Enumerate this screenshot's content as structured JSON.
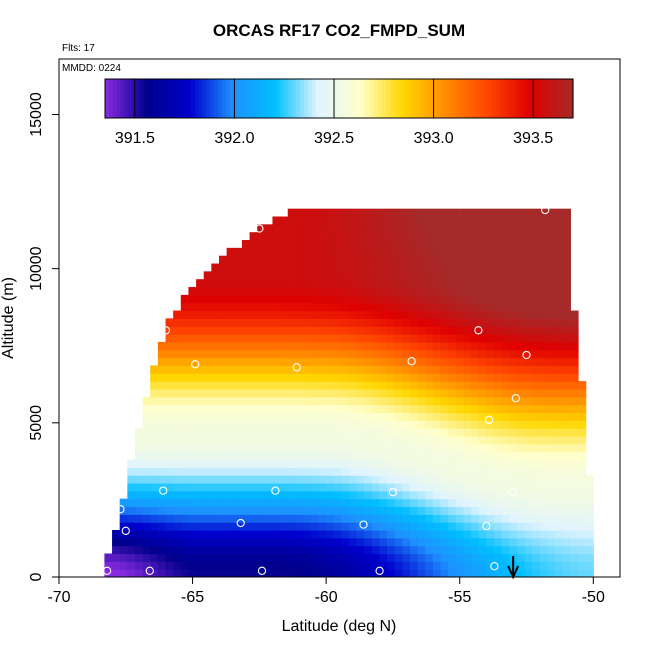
{
  "chart_data": {
    "type": "heatmap",
    "title": "ORCAS RF17 CO2_FMPD_SUM",
    "annotations": {
      "flights": "Flts: 17",
      "date": "MMDD: 0224"
    },
    "xlabel": "Latitude (deg N)",
    "ylabel": "Altitude (m)",
    "xlim": [
      -70,
      -49
    ],
    "ylim": [
      0,
      16800
    ],
    "x_ticks": [
      -70,
      -65,
      -60,
      -55,
      -50
    ],
    "y_ticks": [
      0,
      5000,
      10000,
      15000
    ],
    "colorbar": {
      "range": [
        391.35,
        393.7
      ],
      "ticks": [
        391.5,
        392.0,
        392.5,
        393.0,
        393.5
      ],
      "tick_labels": [
        "391.5",
        "392.0",
        "392.5",
        "393.0",
        "393.5"
      ],
      "colors": [
        "#8a2be2",
        "#00008b",
        "#0000cd",
        "#1e90ff",
        "#00bfff",
        "#e0f4ff",
        "#ffffcc",
        "#ffd700",
        "#ff8c00",
        "#ff4500",
        "#e00000",
        "#a52a2a"
      ]
    },
    "field_extent": {
      "lat_min": -68.3,
      "lat_max": -50.0,
      "top_boundary": [
        {
          "lat": -68.2,
          "alt": 500
        },
        {
          "lat": -67.6,
          "alt": 2500
        },
        {
          "lat": -67.0,
          "alt": 5000
        },
        {
          "lat": -66.0,
          "alt": 8200
        },
        {
          "lat": -65.0,
          "alt": 9400
        },
        {
          "lat": -64.0,
          "alt": 10300
        },
        {
          "lat": -63.0,
          "alt": 11000
        },
        {
          "lat": -62.0,
          "alt": 11600
        },
        {
          "lat": -61.0,
          "alt": 12000
        },
        {
          "lat": -60.5,
          "alt": 12100
        },
        {
          "lat": -51.0,
          "alt": 12000
        },
        {
          "lat": -51.0,
          "alt": 10000
        },
        {
          "lat": -50.6,
          "alt": 8000
        },
        {
          "lat": -50.2,
          "alt": 4000
        },
        {
          "lat": -50.0,
          "alt": 2000
        }
      ]
    },
    "samples": [
      {
        "lat": -68.2,
        "alt": 200
      },
      {
        "lat": -66.6,
        "alt": 200
      },
      {
        "lat": -62.4,
        "alt": 200
      },
      {
        "lat": -58.0,
        "alt": 200
      },
      {
        "lat": -53.7,
        "alt": 350
      },
      {
        "lat": -67.5,
        "alt": 1500
      },
      {
        "lat": -67.7,
        "alt": 2200
      },
      {
        "lat": -63.2,
        "alt": 1750
      },
      {
        "lat": -58.6,
        "alt": 1700
      },
      {
        "lat": -54.0,
        "alt": 1650
      },
      {
        "lat": -66.1,
        "alt": 2800
      },
      {
        "lat": -61.9,
        "alt": 2800
      },
      {
        "lat": -57.5,
        "alt": 2750
      },
      {
        "lat": -53.0,
        "alt": 2750
      },
      {
        "lat": -53.9,
        "alt": 5100
      },
      {
        "lat": -52.9,
        "alt": 5800
      },
      {
        "lat": -67.1,
        "alt": 6700
      },
      {
        "lat": -64.9,
        "alt": 6900
      },
      {
        "lat": -61.1,
        "alt": 6800
      },
      {
        "lat": -56.8,
        "alt": 7000
      },
      {
        "lat": -52.5,
        "alt": 7200
      },
      {
        "lat": -54.3,
        "alt": 8000
      },
      {
        "lat": -66.0,
        "alt": 8000
      },
      {
        "lat": -62.5,
        "alt": 11300
      },
      {
        "lat": -60.6,
        "alt": 12100
      },
      {
        "lat": -51.8,
        "alt": 11900
      }
    ],
    "marker": {
      "lat": -53.0,
      "type": "arrow-down"
    }
  }
}
